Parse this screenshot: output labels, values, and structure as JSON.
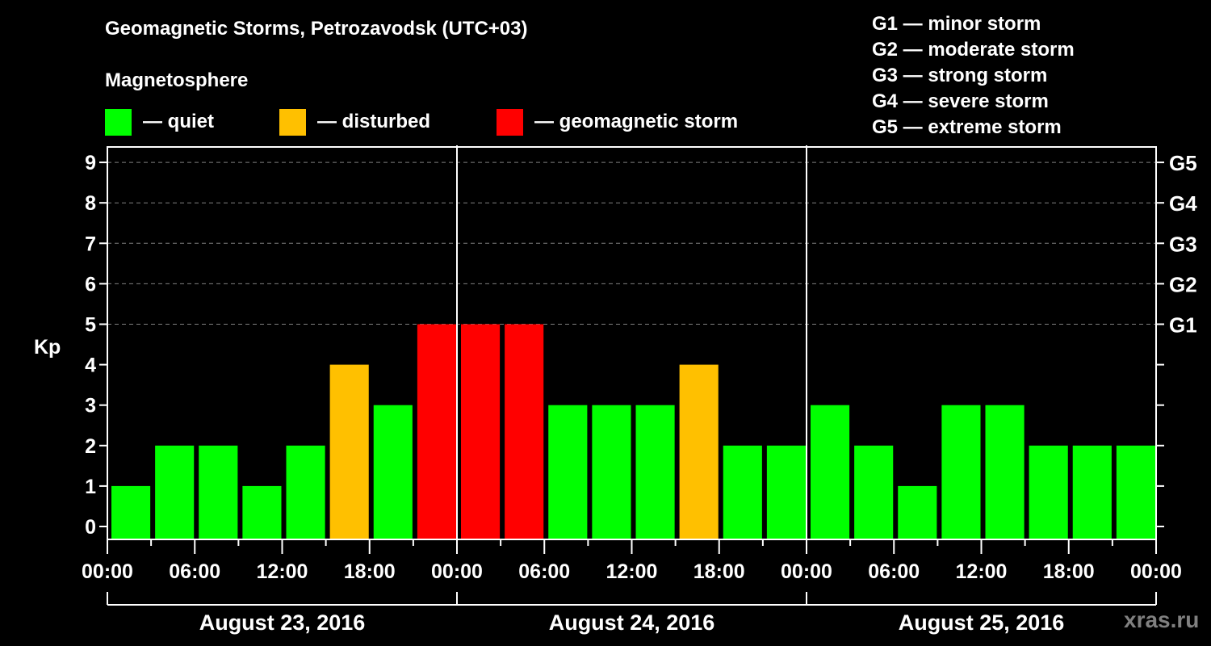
{
  "title": "Geomagnetic Storms, Petrozavodsk (UTC+03)",
  "subtitle": "Magnetosphere",
  "legend": [
    {
      "label": "— quiet",
      "color": "#00ff00"
    },
    {
      "label": "— disturbed",
      "color": "#ffc000"
    },
    {
      "label": "— geomagnetic storm",
      "color": "#ff0000"
    }
  ],
  "g_scale": [
    "G1 — minor storm",
    "G2 — moderate storm",
    "G3 — strong storm",
    "G4 — severe storm",
    "G5 — extreme storm"
  ],
  "watermark": "xras.ru",
  "colors": {
    "quiet": "#00ff00",
    "disturbed": "#ffc000",
    "storm": "#ff0000",
    "grid": "#808080",
    "axis": "#ffffff"
  },
  "chart_data": {
    "type": "bar",
    "title": "Geomagnetic Storms, Petrozavodsk (UTC+03)",
    "ylabel": "Kp",
    "ylim": [
      0,
      9
    ],
    "yticks": [
      0,
      1,
      2,
      3,
      4,
      5,
      6,
      7,
      8,
      9
    ],
    "right_axis_labels": [
      {
        "kp": 5,
        "label": "G1"
      },
      {
        "kp": 6,
        "label": "G2"
      },
      {
        "kp": 7,
        "label": "G3"
      },
      {
        "kp": 8,
        "label": "G4"
      },
      {
        "kp": 9,
        "label": "G5"
      }
    ],
    "grid": "dashed horizontal at Kp 5-9",
    "xtick_labels": [
      "00:00",
      "06:00",
      "12:00",
      "18:00",
      "00:00",
      "06:00",
      "12:00",
      "18:00",
      "00:00",
      "06:00",
      "12:00",
      "18:00",
      "00:00"
    ],
    "days": [
      "August 23, 2016",
      "August 24, 2016",
      "August 25, 2016"
    ],
    "interval_hours": 3,
    "values": [
      1,
      2,
      2,
      1,
      2,
      4,
      3,
      5,
      5,
      5,
      3,
      3,
      3,
      4,
      2,
      2,
      3,
      2,
      1,
      3,
      3,
      2,
      2,
      2
    ],
    "status": [
      "quiet",
      "quiet",
      "quiet",
      "quiet",
      "quiet",
      "disturbed",
      "quiet",
      "storm",
      "storm",
      "storm",
      "quiet",
      "quiet",
      "quiet",
      "disturbed",
      "quiet",
      "quiet",
      "quiet",
      "quiet",
      "quiet",
      "quiet",
      "quiet",
      "quiet",
      "quiet",
      "quiet"
    ]
  }
}
